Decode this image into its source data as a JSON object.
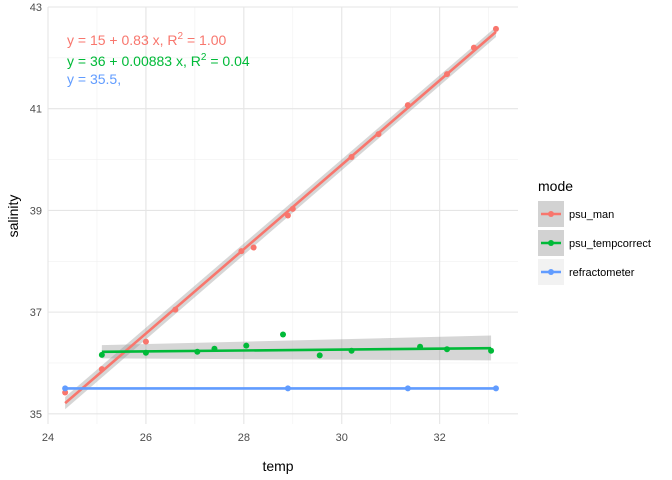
{
  "chart_data": {
    "type": "scatter",
    "xlabel": "temp",
    "ylabel": "salinity",
    "xlim": [
      24,
      33.6
    ],
    "ylim": [
      34.8,
      43
    ],
    "x_ticks": [
      24,
      26,
      28,
      30,
      32
    ],
    "y_ticks": [
      35,
      37,
      39,
      41,
      43
    ],
    "x_tick_labels": [
      "24",
      "26",
      "28",
      "30",
      "32"
    ],
    "y_tick_labels": [
      "35",
      "37",
      "39",
      "41",
      "43"
    ],
    "grid": true,
    "legend": {
      "title": "mode",
      "placement": "right",
      "items": [
        "psu_man",
        "psu_tempcorrect",
        "refractometer"
      ]
    },
    "series": [
      {
        "name": "psu_man",
        "color": "#F8766D",
        "points": [
          [
            24.35,
            35.42
          ],
          [
            25.1,
            35.88
          ],
          [
            26.0,
            36.42
          ],
          [
            26.6,
            37.05
          ],
          [
            27.95,
            38.2
          ],
          [
            28.2,
            38.27
          ],
          [
            28.9,
            38.9
          ],
          [
            29.0,
            39.03
          ],
          [
            30.2,
            40.05
          ],
          [
            30.75,
            40.5
          ],
          [
            31.35,
            41.07
          ],
          [
            32.15,
            41.68
          ],
          [
            32.7,
            42.2
          ],
          [
            33.15,
            42.57
          ]
        ],
        "fit": {
          "x": [
            24.35,
            33.15
          ],
          "y": [
            35.21,
            42.51
          ]
        },
        "band": {
          "x": [
            24.35,
            33.15
          ],
          "lower": [
            35.09,
            42.41
          ],
          "upper": [
            35.33,
            42.61
          ]
        }
      },
      {
        "name": "psu_tempcorrect",
        "color": "#00BA38",
        "points": [
          [
            25.1,
            36.16
          ],
          [
            26.0,
            36.2
          ],
          [
            27.05,
            36.22
          ],
          [
            27.4,
            36.28
          ],
          [
            28.05,
            36.34
          ],
          [
            28.8,
            36.56
          ],
          [
            29.55,
            36.15
          ],
          [
            30.2,
            36.24
          ],
          [
            31.6,
            36.32
          ],
          [
            32.15,
            36.27
          ],
          [
            33.05,
            36.24
          ]
        ],
        "fit": {
          "x": [
            25.1,
            33.05
          ],
          "y": [
            36.22,
            36.29
          ]
        },
        "band": {
          "x": [
            25.1,
            33.05
          ],
          "lower": [
            36.09,
            36.05
          ],
          "upper": [
            36.35,
            36.54
          ]
        }
      },
      {
        "name": "refractometer",
        "color": "#619CFF",
        "points": [
          [
            24.35,
            35.5
          ],
          [
            28.9,
            35.5
          ],
          [
            31.35,
            35.5
          ],
          [
            33.15,
            35.5
          ]
        ],
        "fit": {
          "x": [
            24.35,
            33.15
          ],
          "y": [
            35.5,
            35.5
          ]
        },
        "band": null
      }
    ],
    "annotations": [
      {
        "series": "psu_man",
        "text_pre": "y = 15 + 0.83 x, R",
        "sup": "2",
        "text_post": " = 1.00",
        "color": "#F8766D"
      },
      {
        "series": "psu_tempcorrect",
        "text_pre": "y = 36 + 0.00883 x, R",
        "sup": "2",
        "text_post": " = 0.04",
        "color": "#00BA38"
      },
      {
        "series": "refractometer",
        "text_pre": "y = 35.5,",
        "sup": "",
        "text_post": "",
        "color": "#619CFF"
      }
    ]
  }
}
